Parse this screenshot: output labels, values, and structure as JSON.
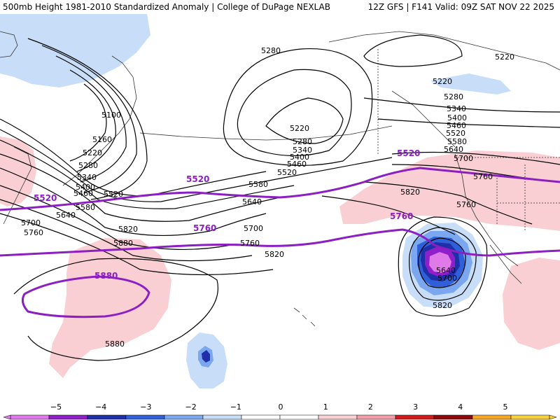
{
  "header": {
    "title_left": "500mb Height 1981-2010 Standardized Anomaly | College of DuPage NEXLAB",
    "title_right": "12Z GFS | F141 Valid: 09Z SAT NOV 22 2025"
  },
  "contour_labels": [
    {
      "text": "5280"
    },
    {
      "text": "5220"
    },
    {
      "text": "5220"
    },
    {
      "text": "5100"
    },
    {
      "text": "5160"
    },
    {
      "text": "5220"
    },
    {
      "text": "5280"
    },
    {
      "text": "5340"
    },
    {
      "text": "5400"
    },
    {
      "text": "5460"
    },
    {
      "text": "5520"
    },
    {
      "text": "5580"
    },
    {
      "text": "5640"
    },
    {
      "text": "5700"
    },
    {
      "text": "5760"
    },
    {
      "text": "5220"
    },
    {
      "text": "5280"
    },
    {
      "text": "5340"
    },
    {
      "text": "5400"
    },
    {
      "text": "5460"
    },
    {
      "text": "5520"
    },
    {
      "text": "5580"
    },
    {
      "text": "5640"
    },
    {
      "text": "5700"
    },
    {
      "text": "5760"
    },
    {
      "text": "5820"
    },
    {
      "text": "5280"
    },
    {
      "text": "5340"
    },
    {
      "text": "5400"
    },
    {
      "text": "5460"
    },
    {
      "text": "5520"
    },
    {
      "text": "5580"
    },
    {
      "text": "5640"
    },
    {
      "text": "5700"
    },
    {
      "text": "5760"
    },
    {
      "text": "5820"
    },
    {
      "text": "5880"
    },
    {
      "text": "5880"
    },
    {
      "text": "5820"
    },
    {
      "text": "5760"
    },
    {
      "text": "5640"
    },
    {
      "text": "5700"
    },
    {
      "text": "5820"
    },
    {
      "text": "5220"
    }
  ],
  "highlight_labels": [
    {
      "text": "5520"
    },
    {
      "text": "5520"
    },
    {
      "text": "5520"
    },
    {
      "text": "5760"
    },
    {
      "text": "5760"
    },
    {
      "text": "5880"
    }
  ],
  "colorbar": {
    "ticks": [
      "−5",
      "−4",
      "−3",
      "−2",
      "−1",
      "0",
      "1",
      "2",
      "3",
      "4",
      "5"
    ],
    "colors": [
      "#e07ae8",
      "#8f1fc9",
      "#1f2fa8",
      "#2f5fd9",
      "#7ba6f0",
      "#c8ddf8",
      "#ffffff",
      "#ffffff",
      "#f9cfd4",
      "#f2a0a8",
      "#d11a1a",
      "#8e0a0a",
      "#f5a623",
      "#f7d13c"
    ]
  }
}
